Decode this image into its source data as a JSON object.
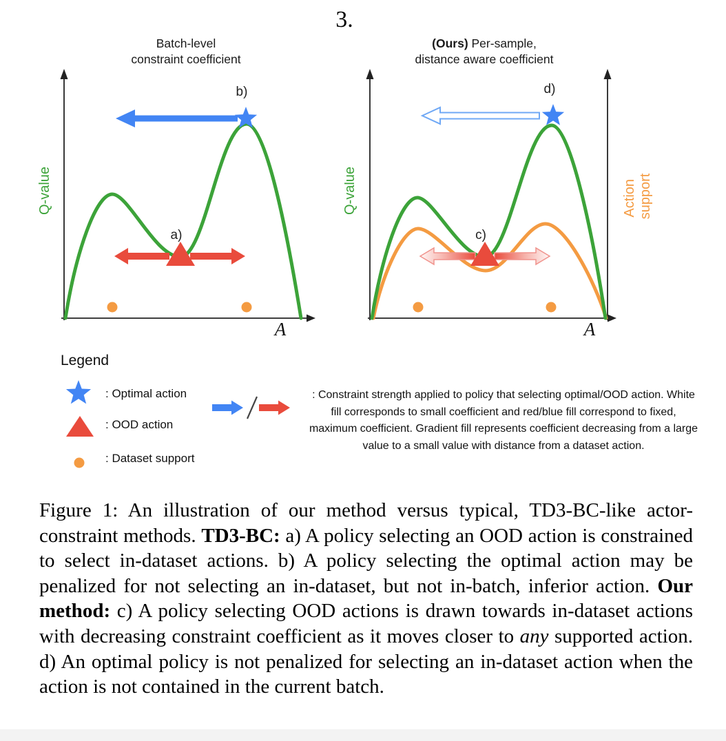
{
  "page_number": "3.",
  "colors": {
    "curve_green": "#3CA339",
    "curve_orange": "#F49B42",
    "marker_blue": "#4285F4",
    "hollow_arrow_blue_outline": "#6FA8F5",
    "marker_red": "#E94B3C",
    "axis_black": "#222222"
  },
  "left_plot": {
    "title_line1": "Batch-level",
    "title_line2": "constraint coefficient",
    "y_axis_label": "Q-value",
    "x_axis_label": "A",
    "label_a": "a)",
    "label_b": "b)"
  },
  "right_plot": {
    "title_bold": "(Ours)",
    "title_rest": " Per-sample,",
    "title_line2": "distance aware coefficient",
    "y_axis_label": "Q-value",
    "right_axis_line1": "Action",
    "right_axis_line2": "support",
    "x_axis_label": "A",
    "label_c": "c)",
    "label_d": "d)"
  },
  "legend": {
    "heading": "Legend",
    "items": [
      {
        "icon": "star",
        "label": ": Optimal action"
      },
      {
        "icon": "triangle",
        "label": ": OOD action"
      },
      {
        "icon": "dot",
        "label": ": Dataset support"
      }
    ],
    "arrows_note": ": Constraint strength applied to policy that selecting optimal/OOD action. White fill corresponds to small coefficient and red/blue fill correspond to fixed, maximum coefficient. Gradient fill represents coefficient decreasing from a large value to a small value with distance from a dataset action."
  },
  "figure": {
    "panels": [
      {
        "side": "left",
        "curves": [
          {
            "name": "q-value",
            "color": "#3CA339",
            "shape": "bimodal, taller right peak"
          }
        ],
        "markers": [
          {
            "type": "star",
            "meaning": "Optimal action",
            "at": "top of right peak",
            "label": "b)"
          },
          {
            "type": "triangle",
            "meaning": "OOD action",
            "at": "valley between peaks",
            "label": "a)"
          },
          {
            "type": "dot",
            "meaning": "Dataset support",
            "count": 2
          }
        ],
        "arrows": [
          {
            "color": "blue",
            "fill": "solid",
            "direction": "left",
            "origin": "star"
          },
          {
            "color": "red",
            "fill": "solid",
            "direction": "left and right",
            "origin": "triangle"
          }
        ]
      },
      {
        "side": "right",
        "curves": [
          {
            "name": "q-value",
            "color": "#3CA339",
            "shape": "bimodal, taller right peak"
          },
          {
            "name": "action-support",
            "color": "#F49B42",
            "shape": "bimodal, lower amplitude"
          }
        ],
        "markers": [
          {
            "type": "star",
            "meaning": "Optimal action",
            "at": "top of right peak",
            "label": "d)"
          },
          {
            "type": "triangle",
            "meaning": "OOD action",
            "at": "valley between peaks",
            "label": "c)"
          },
          {
            "type": "dot",
            "meaning": "Dataset support",
            "count": 2
          }
        ],
        "arrows": [
          {
            "color": "blue",
            "fill": "white (hollow)",
            "direction": "left",
            "origin": "star"
          },
          {
            "color": "red",
            "fill": "gradient red-to-white toward tips",
            "direction": "left and right",
            "origin": "triangle"
          }
        ]
      }
    ]
  },
  "caption": {
    "segments": [
      {
        "text": "Figure 1:  An illustration of our method versus typical, TD3-BC-like actor-constraint methods.  ",
        "style": "normal"
      },
      {
        "text": "TD3-BC:",
        "style": "bold"
      },
      {
        "text": "  a) A policy selecting an OOD action is constrained to select in-dataset actions.  b) A policy selecting the optimal action may be penalized for not selecting an in-dataset, but not in-batch, inferior action.  ",
        "style": "normal"
      },
      {
        "text": "Our method:",
        "style": "bold"
      },
      {
        "text": "  c) A policy selecting OOD actions is drawn towards in-dataset actions with decreasing constraint coefficient as it moves closer to ",
        "style": "normal"
      },
      {
        "text": "any",
        "style": "italic"
      },
      {
        "text": " supported action.  d) An optimal policy is not penalized for selecting an in-dataset action when the action is not contained in the current batch.",
        "style": "normal"
      }
    ]
  }
}
